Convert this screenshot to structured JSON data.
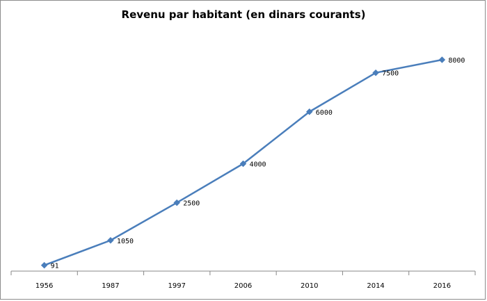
{
  "chart_data": {
    "type": "line",
    "title": "Revenu par habitant (en dinars courants)",
    "xlabel": "",
    "ylabel": "",
    "categories": [
      "1956",
      "1987",
      "1997",
      "2006",
      "2010",
      "2014",
      "2016"
    ],
    "series": [
      {
        "values": [
          91,
          1050,
          2500,
          4000,
          6000,
          7500,
          8000
        ],
        "data_labels": [
          "91",
          "1050",
          "2500",
          "4000",
          "6000",
          "7500",
          "8000"
        ],
        "color": "#4a7ebb",
        "marker": "diamond"
      }
    ],
    "ylim": [
      0,
      8000
    ],
    "y_axis_visible": false,
    "grid": false,
    "legend": "none"
  }
}
